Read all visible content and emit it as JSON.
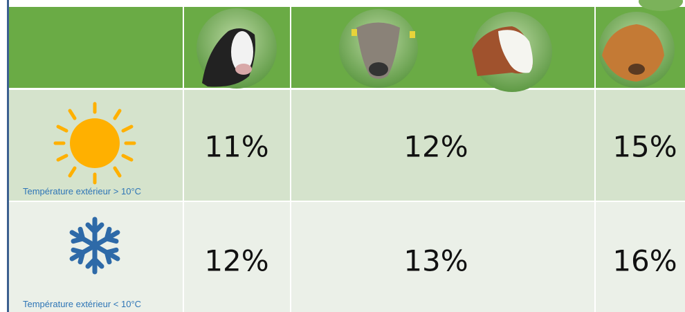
{
  "table": {
    "rows": [
      {
        "condition": "Température extérieur > 10°C",
        "values": [
          "11%",
          "12%",
          "15%"
        ]
      },
      {
        "condition": "Température extérieur < 10°C",
        "values": [
          "12%",
          "13%",
          "16%"
        ]
      }
    ]
  }
}
